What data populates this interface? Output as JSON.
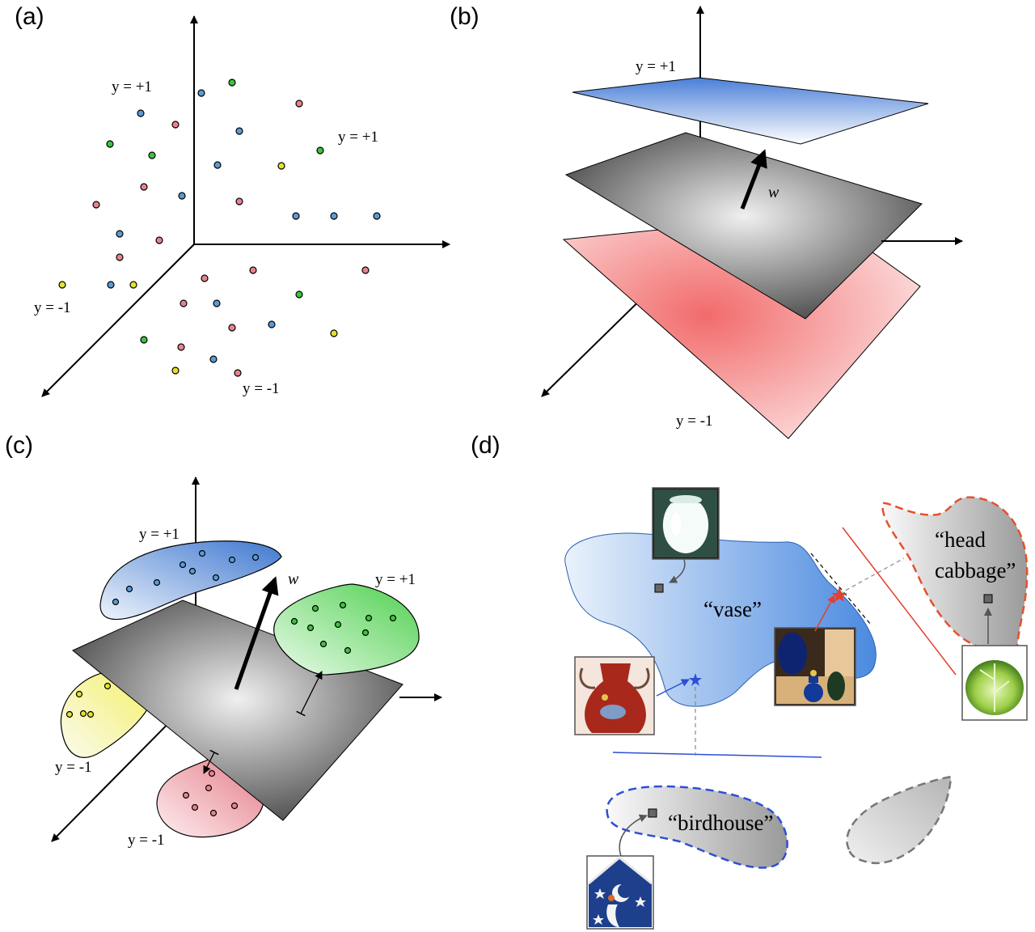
{
  "panels": {
    "a": {
      "label": "(a)",
      "labels": [
        "y = +1",
        "y = +1",
        "y = -1",
        "y = -1"
      ]
    },
    "b": {
      "label": "(b)",
      "top_label": "y = +1",
      "bottom_label": "y = -1",
      "vector": "w⃗"
    },
    "c": {
      "label": "(c)",
      "labels": [
        "y = +1",
        "y = +1",
        "y = -1",
        "y = -1"
      ],
      "vector": "w⃗"
    },
    "d": {
      "label": "(d)",
      "classes": {
        "vase": "“vase”",
        "head": "“head",
        "cabbage": "cabbage”",
        "birdhouse": "“birdhouse”"
      }
    }
  },
  "colors": {
    "blue": "#5b9bd5",
    "pink": "#e8838e",
    "green": "#3dc43d",
    "yellow": "#e5e22e",
    "red_line": "#e53e2e",
    "blue_line": "#2c4fd6"
  }
}
